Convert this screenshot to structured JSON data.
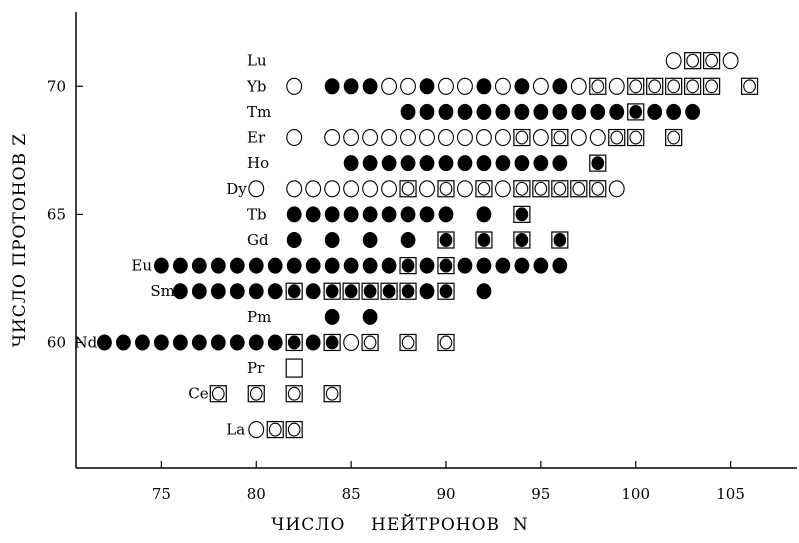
{
  "chart_data": {
    "type": "scatter",
    "title": "",
    "xlabel": "ЧИСЛО    НЕЙТРОНОВ  N",
    "ylabel": "ЧИСЛО  ПРОТОНОВ  Z",
    "xlim": [
      70.5,
      108.5
    ],
    "ylim": [
      55.1,
      72.9
    ],
    "xticks": [
      75,
      80,
      85,
      90,
      95,
      100,
      105
    ],
    "yticks": [
      60,
      65,
      70
    ],
    "grid": false,
    "legend": "none",
    "marker_types": [
      "filled-circle",
      "open-circle",
      "open-square",
      "square-with-circle",
      "square-with-filled-circle"
    ],
    "colors": {
      "marker": "#000000",
      "background": "#ffffff"
    },
    "elements": [
      {
        "symbol": "Lu",
        "z": 71,
        "points": [
          {
            "n": 102,
            "m": "oc"
          },
          {
            "n": 103,
            "m": "sq"
          },
          {
            "n": 104,
            "m": "sq"
          },
          {
            "n": 105,
            "m": "oc"
          }
        ]
      },
      {
        "symbol": "Yb",
        "z": 70,
        "points": [
          {
            "n": 82,
            "m": "oc"
          },
          {
            "n": 84,
            "m": "fc"
          },
          {
            "n": 85,
            "m": "fc"
          },
          {
            "n": 86,
            "m": "fc"
          },
          {
            "n": 87,
            "m": "oc"
          },
          {
            "n": 88,
            "m": "oc"
          },
          {
            "n": 89,
            "m": "fc"
          },
          {
            "n": 90,
            "m": "oc"
          },
          {
            "n": 91,
            "m": "oc"
          },
          {
            "n": 92,
            "m": "fc"
          },
          {
            "n": 93,
            "m": "oc"
          },
          {
            "n": 94,
            "m": "fc"
          },
          {
            "n": 95,
            "m": "oc"
          },
          {
            "n": 96,
            "m": "fc"
          },
          {
            "n": 97,
            "m": "oc"
          },
          {
            "n": 98,
            "m": "sq"
          },
          {
            "n": 99,
            "m": "oc"
          },
          {
            "n": 100,
            "m": "sq"
          },
          {
            "n": 101,
            "m": "sq"
          },
          {
            "n": 102,
            "m": "sq"
          },
          {
            "n": 103,
            "m": "sq"
          },
          {
            "n": 104,
            "m": "sq"
          },
          {
            "n": 106,
            "m": "sq"
          }
        ]
      },
      {
        "symbol": "Tm",
        "z": 69,
        "points": [
          {
            "n": 88,
            "m": "fc"
          },
          {
            "n": 89,
            "m": "fc"
          },
          {
            "n": 90,
            "m": "fc"
          },
          {
            "n": 91,
            "m": "fc"
          },
          {
            "n": 92,
            "m": "fc"
          },
          {
            "n": 93,
            "m": "fc"
          },
          {
            "n": 94,
            "m": "fc"
          },
          {
            "n": 95,
            "m": "fc"
          },
          {
            "n": 96,
            "m": "fc"
          },
          {
            "n": 97,
            "m": "fc"
          },
          {
            "n": 98,
            "m": "fc"
          },
          {
            "n": 99,
            "m": "fc"
          },
          {
            "n": 100,
            "m": "sf"
          },
          {
            "n": 101,
            "m": "fc"
          },
          {
            "n": 102,
            "m": "fc"
          },
          {
            "n": 103,
            "m": "fc"
          }
        ]
      },
      {
        "symbol": "Er",
        "z": 68,
        "points": [
          {
            "n": 82,
            "m": "oc"
          },
          {
            "n": 84,
            "m": "oc"
          },
          {
            "n": 85,
            "m": "oc"
          },
          {
            "n": 86,
            "m": "oc"
          },
          {
            "n": 87,
            "m": "oc"
          },
          {
            "n": 88,
            "m": "oc"
          },
          {
            "n": 89,
            "m": "oc"
          },
          {
            "n": 90,
            "m": "oc"
          },
          {
            "n": 91,
            "m": "oc"
          },
          {
            "n": 92,
            "m": "oc"
          },
          {
            "n": 93,
            "m": "oc"
          },
          {
            "n": 94,
            "m": "sq"
          },
          {
            "n": 95,
            "m": "oc"
          },
          {
            "n": 96,
            "m": "sq"
          },
          {
            "n": 97,
            "m": "oc"
          },
          {
            "n": 98,
            "m": "oc"
          },
          {
            "n": 99,
            "m": "sq"
          },
          {
            "n": 100,
            "m": "sq"
          },
          {
            "n": 102,
            "m": "sq"
          }
        ]
      },
      {
        "symbol": "Ho",
        "z": 67,
        "points": [
          {
            "n": 85,
            "m": "fc"
          },
          {
            "n": 86,
            "m": "fc"
          },
          {
            "n": 87,
            "m": "fc"
          },
          {
            "n": 88,
            "m": "fc"
          },
          {
            "n": 89,
            "m": "fc"
          },
          {
            "n": 90,
            "m": "fc"
          },
          {
            "n": 91,
            "m": "fc"
          },
          {
            "n": 92,
            "m": "fc"
          },
          {
            "n": 93,
            "m": "fc"
          },
          {
            "n": 94,
            "m": "fc"
          },
          {
            "n": 95,
            "m": "fc"
          },
          {
            "n": 96,
            "m": "fc"
          },
          {
            "n": 98,
            "m": "sf"
          }
        ]
      },
      {
        "symbol": "Dy",
        "z": 66,
        "points": [
          {
            "n": 80,
            "m": "oc"
          },
          {
            "n": 82,
            "m": "oc"
          },
          {
            "n": 83,
            "m": "oc"
          },
          {
            "n": 84,
            "m": "oc"
          },
          {
            "n": 85,
            "m": "oc"
          },
          {
            "n": 86,
            "m": "oc"
          },
          {
            "n": 87,
            "m": "oc"
          },
          {
            "n": 88,
            "m": "sq"
          },
          {
            "n": 89,
            "m": "oc"
          },
          {
            "n": 90,
            "m": "sq"
          },
          {
            "n": 91,
            "m": "oc"
          },
          {
            "n": 92,
            "m": "sq"
          },
          {
            "n": 93,
            "m": "oc"
          },
          {
            "n": 94,
            "m": "sq"
          },
          {
            "n": 95,
            "m": "sq"
          },
          {
            "n": 96,
            "m": "sq"
          },
          {
            "n": 97,
            "m": "sq"
          },
          {
            "n": 98,
            "m": "sq"
          },
          {
            "n": 99,
            "m": "oc"
          }
        ]
      },
      {
        "symbol": "Tb",
        "z": 65,
        "points": [
          {
            "n": 82,
            "m": "fc"
          },
          {
            "n": 83,
            "m": "fc"
          },
          {
            "n": 84,
            "m": "fc"
          },
          {
            "n": 85,
            "m": "fc"
          },
          {
            "n": 86,
            "m": "fc"
          },
          {
            "n": 87,
            "m": "fc"
          },
          {
            "n": 88,
            "m": "fc"
          },
          {
            "n": 89,
            "m": "fc"
          },
          {
            "n": 90,
            "m": "fc"
          },
          {
            "n": 92,
            "m": "fc"
          },
          {
            "n": 94,
            "m": "sf"
          }
        ]
      },
      {
        "symbol": "Gd",
        "z": 64,
        "points": [
          {
            "n": 82,
            "m": "fc"
          },
          {
            "n": 84,
            "m": "fc"
          },
          {
            "n": 86,
            "m": "fc"
          },
          {
            "n": 88,
            "m": "fc"
          },
          {
            "n": 90,
            "m": "sf"
          },
          {
            "n": 92,
            "m": "sf"
          },
          {
            "n": 94,
            "m": "sf"
          },
          {
            "n": 96,
            "m": "sf"
          }
        ]
      },
      {
        "symbol": "Eu",
        "z": 63,
        "points": [
          {
            "n": 75,
            "m": "fc"
          },
          {
            "n": 76,
            "m": "fc"
          },
          {
            "n": 77,
            "m": "fc"
          },
          {
            "n": 78,
            "m": "fc"
          },
          {
            "n": 79,
            "m": "fc"
          },
          {
            "n": 80,
            "m": "fc"
          },
          {
            "n": 81,
            "m": "fc"
          },
          {
            "n": 82,
            "m": "fc"
          },
          {
            "n": 83,
            "m": "fc"
          },
          {
            "n": 84,
            "m": "fc"
          },
          {
            "n": 85,
            "m": "fc"
          },
          {
            "n": 86,
            "m": "fc"
          },
          {
            "n": 87,
            "m": "fc"
          },
          {
            "n": 88,
            "m": "sf"
          },
          {
            "n": 89,
            "m": "fc"
          },
          {
            "n": 90,
            "m": "sf"
          },
          {
            "n": 91,
            "m": "fc"
          },
          {
            "n": 92,
            "m": "fc"
          },
          {
            "n": 93,
            "m": "fc"
          },
          {
            "n": 94,
            "m": "fc"
          },
          {
            "n": 95,
            "m": "fc"
          },
          {
            "n": 96,
            "m": "fc"
          }
        ]
      },
      {
        "symbol": "Sm",
        "z": 62,
        "points": [
          {
            "n": 76,
            "m": "fc"
          },
          {
            "n": 77,
            "m": "fc"
          },
          {
            "n": 78,
            "m": "fc"
          },
          {
            "n": 79,
            "m": "fc"
          },
          {
            "n": 80,
            "m": "fc"
          },
          {
            "n": 81,
            "m": "fc"
          },
          {
            "n": 82,
            "m": "sf"
          },
          {
            "n": 83,
            "m": "fc"
          },
          {
            "n": 84,
            "m": "sf"
          },
          {
            "n": 85,
            "m": "sf"
          },
          {
            "n": 86,
            "m": "sf"
          },
          {
            "n": 87,
            "m": "sf"
          },
          {
            "n": 88,
            "m": "sf"
          },
          {
            "n": 89,
            "m": "fc"
          },
          {
            "n": 90,
            "m": "sf"
          },
          {
            "n": 92,
            "m": "fc"
          }
        ]
      },
      {
        "symbol": "Pm",
        "z": 61,
        "points": [
          {
            "n": 84,
            "m": "fc"
          },
          {
            "n": 86,
            "m": "fc"
          }
        ]
      },
      {
        "symbol": "Nd",
        "z": 60,
        "points": [
          {
            "n": 72,
            "m": "fc"
          },
          {
            "n": 73,
            "m": "fc"
          },
          {
            "n": 74,
            "m": "fc"
          },
          {
            "n": 75,
            "m": "fc"
          },
          {
            "n": 76,
            "m": "fc"
          },
          {
            "n": 77,
            "m": "fc"
          },
          {
            "n": 78,
            "m": "fc"
          },
          {
            "n": 79,
            "m": "fc"
          },
          {
            "n": 80,
            "m": "fc"
          },
          {
            "n": 81,
            "m": "fc"
          },
          {
            "n": 82,
            "m": "sf"
          },
          {
            "n": 83,
            "m": "fc"
          },
          {
            "n": 84,
            "m": "sf"
          },
          {
            "n": 85,
            "m": "oc"
          },
          {
            "n": 86,
            "m": "sq"
          },
          {
            "n": 88,
            "m": "sq"
          },
          {
            "n": 90,
            "m": "sq"
          }
        ]
      },
      {
        "symbol": "Pr",
        "z": 59,
        "points": [
          {
            "n": 82,
            "m": "os"
          }
        ]
      },
      {
        "symbol": "Ce",
        "z": 58,
        "points": [
          {
            "n": 78,
            "m": "sq"
          },
          {
            "n": 80,
            "m": "sq"
          },
          {
            "n": 82,
            "m": "sq"
          },
          {
            "n": 84,
            "m": "sq"
          }
        ]
      },
      {
        "symbol": "La",
        "z": 56.6,
        "points": [
          {
            "n": 80,
            "m": "oc"
          },
          {
            "n": 81,
            "m": "sq"
          },
          {
            "n": 82,
            "m": "sq"
          }
        ]
      }
    ]
  }
}
